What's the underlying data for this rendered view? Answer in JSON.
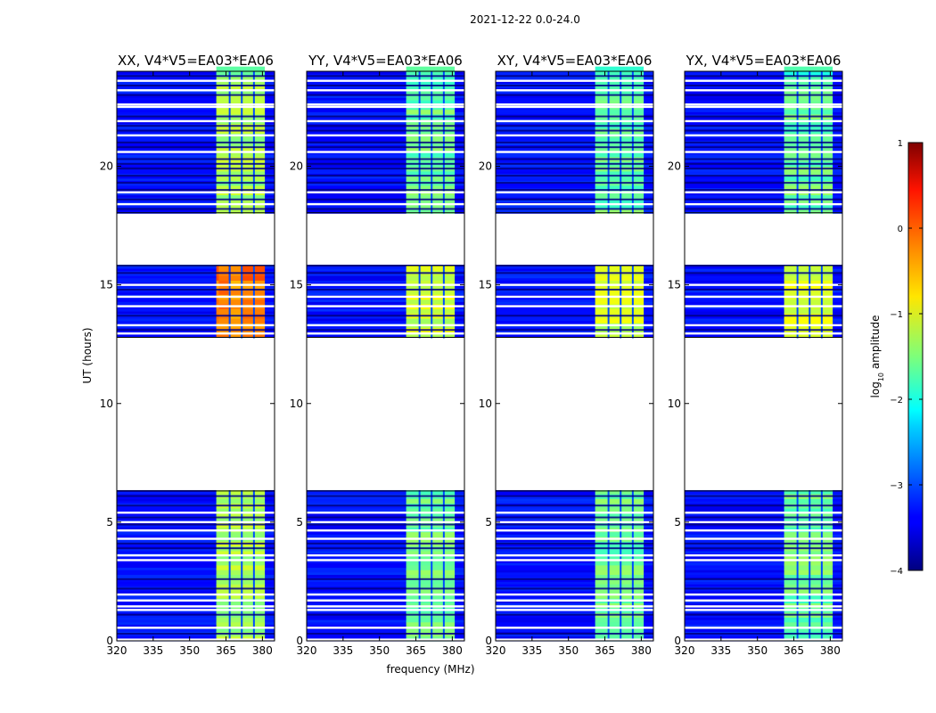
{
  "chart_data": {
    "type": "heatmap",
    "suptitle": "2021-12-22 0.0-24.0",
    "xlabel": "frequency (MHz)",
    "ylabel": "UT (hours)",
    "xlim": [
      320,
      385
    ],
    "ylim": [
      0,
      24
    ],
    "xticks": [
      320,
      335,
      350,
      365,
      380
    ],
    "yticks": [
      0,
      5,
      10,
      15,
      20
    ],
    "panels": [
      {
        "title": "XX, V4*V5=EA03*EA06",
        "rfi_level": -1.3,
        "strong_level": -0.2
      },
      {
        "title": "YY, V4*V5=EA03*EA06",
        "rfi_level": -1.6,
        "strong_level": -1.1
      },
      {
        "title": "XY, V4*V5=EA03*EA06",
        "rfi_level": -1.6,
        "strong_level": -1.15
      },
      {
        "title": "YX, V4*V5=EA03*EA06",
        "rfi_level": -1.6,
        "strong_level": -1.1
      }
    ],
    "rfi_band_mhz": [
      361,
      381
    ],
    "rfi_channel_gaps_mhz": [
      366.5,
      371.5,
      376.5
    ],
    "background_level": -3.3,
    "data_gaps_hours": [
      [
        6.35,
        12.75
      ],
      [
        15.85,
        18.0
      ]
    ],
    "flagged_rows_hours": [
      0.05,
      0.55,
      1.3,
      1.45,
      1.7,
      1.95,
      3.4,
      3.6,
      4.3,
      4.65,
      5.0,
      5.4,
      12.95,
      13.3,
      14.1,
      14.5,
      15.0,
      18.4,
      18.9,
      20.6,
      21.3,
      21.9,
      22.5,
      22.6,
      23.2,
      23.6
    ],
    "dark_rows_hours": [
      0.3,
      1.1,
      2.2,
      2.6,
      3.9,
      4.1,
      4.9,
      5.2,
      5.7,
      6.1,
      13.1,
      13.7,
      14.8,
      15.5,
      18.2,
      18.6,
      19.0,
      19.3,
      19.6,
      19.9,
      20.1,
      20.3,
      20.8,
      21.0,
      21.5,
      21.7,
      22.1,
      23.0,
      23.4,
      23.8
    ],
    "colorbar": {
      "label": "log",
      "label_sub": "10",
      "label_rest": " amplitude",
      "range": [
        -4,
        1
      ],
      "ticks": [
        1,
        0,
        -1,
        -2,
        -3,
        -4
      ],
      "colormap": "jet"
    }
  }
}
